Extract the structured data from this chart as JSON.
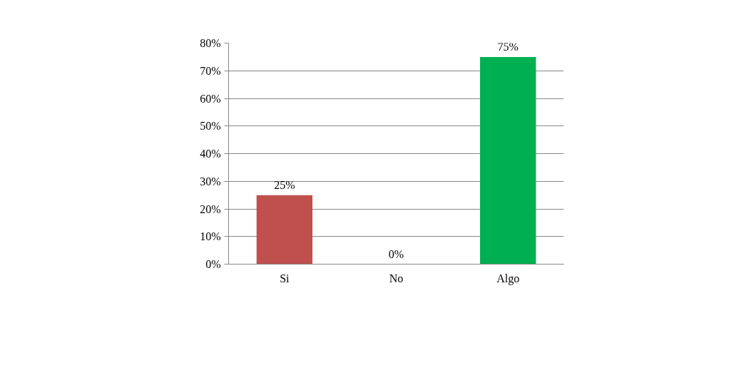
{
  "chart_data": {
    "type": "bar",
    "categories": [
      "Si",
      "No",
      "Algo"
    ],
    "values": [
      25,
      0,
      75
    ],
    "colors": [
      "#c0504d",
      "#4f81bd",
      "#00b050"
    ],
    "value_labels": [
      "25%",
      "0%",
      "75%"
    ],
    "ylim": [
      0,
      80
    ],
    "yticks": [
      {
        "value": 0,
        "label": "0%"
      },
      {
        "value": 10,
        "label": "10%"
      },
      {
        "value": 20,
        "label": "20%"
      },
      {
        "value": 30,
        "label": "30%"
      },
      {
        "value": 40,
        "label": "40%"
      },
      {
        "value": 50,
        "label": "50%"
      },
      {
        "value": 60,
        "label": "60%"
      },
      {
        "value": 70,
        "label": "70%"
      },
      {
        "value": 80,
        "label": "80%"
      }
    ],
    "grid": "y"
  }
}
